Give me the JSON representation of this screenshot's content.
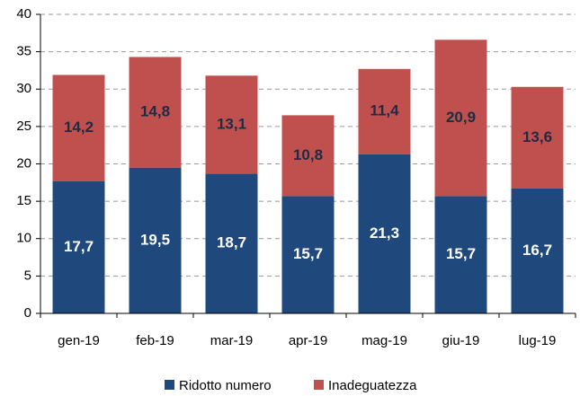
{
  "chart_data": {
    "type": "stacked_bar",
    "categories": [
      "gen-19",
      "feb-19",
      "mar-19",
      "apr-19",
      "mag-19",
      "giu-19",
      "lug-19"
    ],
    "series": [
      {
        "name": "Ridotto numero",
        "color": "#1f497d",
        "values": [
          17.7,
          19.5,
          18.7,
          15.7,
          21.3,
          15.7,
          16.7
        ],
        "value_labels": [
          "17,7",
          "19,5",
          "18,7",
          "15,7",
          "21,3",
          "15,7",
          "16,7"
        ]
      },
      {
        "name": "Inadeguatezza",
        "color": "#c0504d",
        "values": [
          14.2,
          14.8,
          13.1,
          10.8,
          11.4,
          20.9,
          13.6
        ],
        "value_labels": [
          "14,2",
          "14,8",
          "13,1",
          "10,8",
          "11,4",
          "20,9",
          "13,6"
        ]
      }
    ],
    "ylim": [
      0,
      40
    ],
    "yticks": [
      0,
      5,
      10,
      15,
      20,
      25,
      30,
      35,
      40
    ],
    "grid": true,
    "legend": "bottom"
  }
}
